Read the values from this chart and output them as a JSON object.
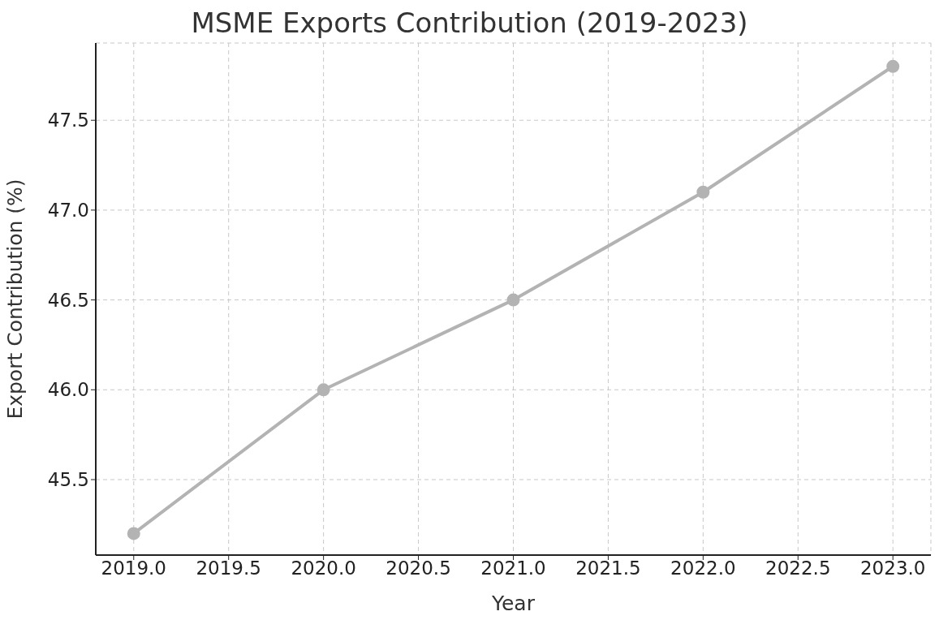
{
  "chart_data": {
    "type": "line",
    "title": "MSME Exports Contribution (2019-2023)",
    "xlabel": "Year",
    "ylabel": "Export Contribution (%)",
    "x": [
      2019,
      2020,
      2021,
      2022,
      2023
    ],
    "series": [
      {
        "color": "#b3b3b3",
        "values": [
          45.2,
          46.0,
          46.5,
          47.1,
          47.8
        ]
      }
    ],
    "xlim": [
      2018.8,
      2023.2
    ],
    "xticks": [
      {
        "value": 2019,
        "label": "2019.0"
      },
      {
        "value": 2019.5,
        "label": "2019.5"
      },
      {
        "value": 2020,
        "label": "2020.0"
      },
      {
        "value": 2020.5,
        "label": "2020.5"
      },
      {
        "value": 2021,
        "label": "2021.0"
      },
      {
        "value": 2021.5,
        "label": "2021.5"
      },
      {
        "value": 2022,
        "label": "2022.0"
      },
      {
        "value": 2022.5,
        "label": "2022.5"
      },
      {
        "value": 2023,
        "label": "2023.0"
      }
    ],
    "ylim": [
      45.08,
      47.93
    ],
    "yticks": [
      {
        "value": 45.5,
        "label": "45.5"
      },
      {
        "value": 46,
        "label": "46.0"
      },
      {
        "value": 46.5,
        "label": "46.5"
      },
      {
        "value": 47,
        "label": "47.0"
      },
      {
        "value": 47.5,
        "label": "47.5"
      }
    ],
    "grid": true,
    "marker": "circle",
    "line_style": "solid"
  }
}
